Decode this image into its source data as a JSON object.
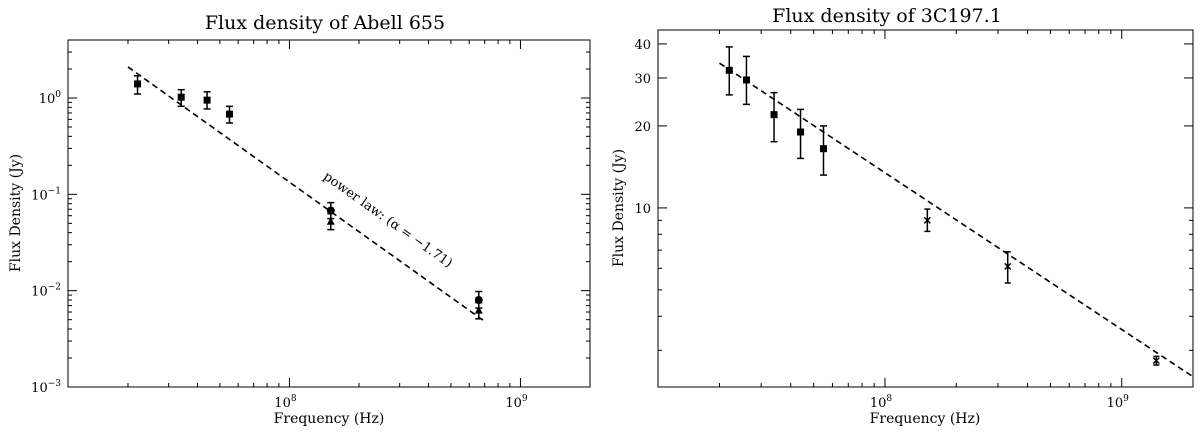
{
  "chart_data": [
    {
      "type": "scatter",
      "title": "Flux density of Abell 655",
      "xlabel": "Frequency (Hz)",
      "ylabel": "Flux Density (Jy)",
      "xscale": "log",
      "yscale": "log",
      "xlim": [
        11000000,
        2000000000
      ],
      "ylim": [
        0.001,
        4
      ],
      "x_major_ticks": [
        {
          "value": 100000000,
          "base": "10",
          "exp": "8"
        },
        {
          "value": 1000000000,
          "base": "10",
          "exp": "9"
        }
      ],
      "y_major_ticks": [
        {
          "value": 0.001,
          "base": "10",
          "exp": "−3"
        },
        {
          "value": 0.01,
          "base": "10",
          "exp": "−2"
        },
        {
          "value": 0.1,
          "base": "10",
          "exp": "−1"
        },
        {
          "value": 1,
          "base": "10",
          "exp": "0"
        }
      ],
      "series": [
        {
          "marker": "square",
          "points": [
            {
              "x": 22000000,
              "y": 1.4,
              "lo": 1.1,
              "hi": 1.7
            },
            {
              "x": 34000000,
              "y": 1.02,
              "lo": 0.82,
              "hi": 1.22
            },
            {
              "x": 44000000,
              "y": 0.95,
              "lo": 0.77,
              "hi": 1.16
            },
            {
              "x": 55000000,
              "y": 0.68,
              "lo": 0.55,
              "hi": 0.82
            }
          ]
        },
        {
          "marker": "circle",
          "points": [
            {
              "x": 151000000,
              "y": 0.068,
              "lo": 0.056,
              "hi": 0.082
            },
            {
              "x": 660000000,
              "y": 0.008,
              "lo": 0.0066,
              "hi": 0.0098
            }
          ]
        },
        {
          "marker": "triangle",
          "points": [
            {
              "x": 151000000,
              "y": 0.052,
              "lo": 0.043,
              "hi": 0.063
            },
            {
              "x": 660000000,
              "y": 0.0062,
              "lo": 0.0051,
              "hi": 0.0075
            }
          ]
        }
      ],
      "fit_line": {
        "x": [
          20000000,
          700000000
        ],
        "y": [
          2.1,
          0.0048
        ]
      },
      "annotation": "power law: (α = −1.71)"
    },
    {
      "type": "scatter",
      "title": "Flux density of 3C197.1",
      "xlabel": "Frequency (Hz)",
      "ylabel": "Flux Density (Jy)",
      "xscale": "log",
      "yscale": "log",
      "xlim": [
        11000000,
        2000000000
      ],
      "ylim": [
        2.2,
        45
      ],
      "x_major_ticks": [
        {
          "value": 100000000,
          "base": "10",
          "exp": "8"
        },
        {
          "value": 1000000000,
          "base": "10",
          "exp": "9"
        }
      ],
      "y_major_ticks": [
        {
          "value": 10,
          "label": "10"
        },
        {
          "value": 20,
          "label": "20"
        },
        {
          "value": 30,
          "label": "30"
        },
        {
          "value": 40,
          "label": "40"
        }
      ],
      "series": [
        {
          "marker": "square",
          "points": [
            {
              "x": 22000000,
              "y": 32,
              "lo": 26,
              "hi": 39
            },
            {
              "x": 26000000,
              "y": 29.5,
              "lo": 24,
              "hi": 36
            },
            {
              "x": 34000000,
              "y": 22,
              "lo": 17.5,
              "hi": 26.5
            },
            {
              "x": 44000000,
              "y": 19,
              "lo": 15.2,
              "hi": 23
            },
            {
              "x": 55000000,
              "y": 16.5,
              "lo": 13.2,
              "hi": 20
            }
          ]
        },
        {
          "marker": "cross",
          "points": [
            {
              "x": 151000000,
              "y": 9.0,
              "lo": 8.2,
              "hi": 9.9
            },
            {
              "x": 330000000,
              "y": 6.1,
              "lo": 5.3,
              "hi": 6.9
            },
            {
              "x": 1400000000,
              "y": 2.75,
              "lo": 2.65,
              "hi": 2.85
            }
          ]
        }
      ],
      "fit_line": {
        "x": [
          20000000,
          2000000000
        ],
        "y": [
          34,
          2.4
        ]
      },
      "annotation": ""
    }
  ]
}
